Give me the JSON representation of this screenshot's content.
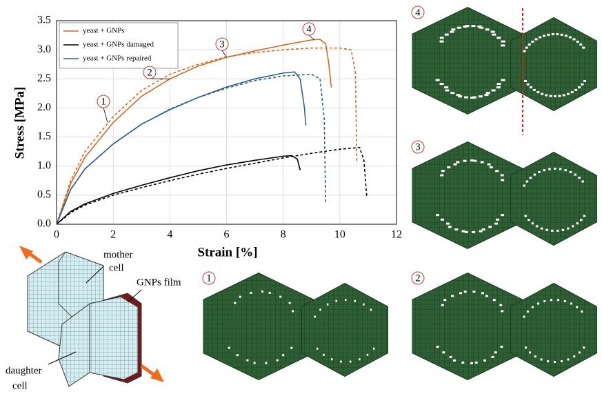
{
  "chart_data": {
    "type": "line",
    "xlabel": "Strain [%]",
    "ylabel": "Stress [MPa]",
    "xlim": [
      0,
      12
    ],
    "xticks": [
      0,
      2,
      4,
      6,
      8,
      10,
      12
    ],
    "ylim": [
      0,
      3.5
    ],
    "yticks": [
      {
        "value": 0,
        "label": "0.0"
      },
      0.5,
      {
        "value": 1,
        "label": "1.0"
      },
      1.5,
      {
        "value": 2,
        "label": "2.0"
      },
      2.5,
      {
        "value": 3,
        "label": "3.0"
      },
      3.5
    ],
    "grid": true,
    "legend": "upper left",
    "annotations": [
      "1",
      "2",
      "3",
      "4"
    ],
    "series": [
      {
        "name": "yeast + GNPs",
        "color": "#d2691e",
        "dash": false,
        "x": [
          0,
          0.5,
          1,
          1.5,
          2,
          3,
          4,
          5,
          6,
          7,
          8,
          9,
          9.3,
          9.5,
          9.6,
          9.7
        ],
        "values": [
          0,
          0.7,
          1.15,
          1.45,
          1.75,
          2.2,
          2.5,
          2.72,
          2.87,
          2.98,
          3.08,
          3.17,
          3.18,
          3.1,
          2.8,
          2.35
        ]
      },
      {
        "name": "yeast + GNPs damaged",
        "color": "#000000",
        "dash": false,
        "x": [
          0,
          0.5,
          1,
          2,
          3,
          4,
          5,
          6,
          7,
          8,
          8.3,
          8.5,
          8.6
        ],
        "values": [
          0,
          0.22,
          0.35,
          0.53,
          0.67,
          0.8,
          0.92,
          1.02,
          1.1,
          1.17,
          1.18,
          1.12,
          0.93
        ]
      },
      {
        "name": "yeast + GNPs repaired",
        "color": "#2f5f8a",
        "dash": false,
        "x": [
          0,
          0.5,
          1,
          2,
          3,
          4,
          5,
          6,
          7,
          8,
          8.4,
          8.6,
          8.75,
          8.8
        ],
        "values": [
          0,
          0.6,
          0.95,
          1.38,
          1.72,
          1.97,
          2.18,
          2.36,
          2.5,
          2.6,
          2.62,
          2.5,
          2.0,
          1.7
        ]
      },
      {
        "color": "#d2691e",
        "dash": true,
        "x": [
          0,
          0.5,
          1,
          2,
          3,
          4,
          5,
          6,
          7,
          8,
          9,
          10,
          10.4,
          10.55,
          10.6
        ],
        "values": [
          0,
          0.75,
          1.25,
          1.85,
          2.3,
          2.58,
          2.75,
          2.88,
          2.95,
          3.0,
          3.03,
          3.03,
          3.0,
          2.6,
          1.05
        ]
      },
      {
        "color": "#000000",
        "dash": true,
        "x": [
          0,
          0.5,
          1,
          2,
          3,
          4,
          5,
          6,
          7,
          8,
          9,
          10,
          10.7,
          10.85,
          10.95
        ],
        "values": [
          0,
          0.2,
          0.33,
          0.5,
          0.63,
          0.75,
          0.86,
          0.96,
          1.05,
          1.14,
          1.22,
          1.29,
          1.32,
          1.1,
          0.47
        ]
      },
      {
        "color": "#2f5f8a",
        "dash": true,
        "x": [
          0,
          0.5,
          1,
          2,
          3,
          4,
          5,
          6,
          7,
          8,
          9,
          9.3,
          9.45,
          9.5
        ],
        "values": [
          0,
          0.6,
          0.95,
          1.38,
          1.72,
          1.98,
          2.18,
          2.34,
          2.47,
          2.55,
          2.58,
          2.5,
          1.8,
          0.35
        ]
      }
    ]
  },
  "panels": {
    "labels": [
      "4",
      "3",
      "1",
      "2"
    ]
  },
  "schematic": {
    "labels": [
      "mother",
      "cell",
      "GNPs film",
      "daughter",
      "cell"
    ]
  }
}
